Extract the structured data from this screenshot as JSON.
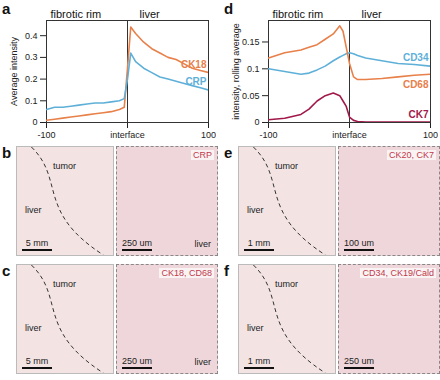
{
  "chart_data": [
    {
      "type": "line",
      "title": "a",
      "regions": [
        "fibrotic rim",
        "liver"
      ],
      "y_label": "Average intensity",
      "x": [
        -100,
        -90,
        -80,
        -70,
        -60,
        -50,
        -40,
        -30,
        -20,
        -10,
        -4,
        0,
        4,
        10,
        20,
        30,
        40,
        50,
        60,
        70,
        80,
        90,
        100
      ],
      "series": [
        {
          "name": "CK18",
          "color": "#e8804a",
          "values": [
            0.01,
            0.015,
            0.02,
            0.025,
            0.03,
            0.035,
            0.04,
            0.045,
            0.05,
            0.06,
            0.07,
            0.25,
            0.44,
            0.41,
            0.37,
            0.34,
            0.32,
            0.3,
            0.29,
            0.27,
            0.25,
            0.24,
            0.23
          ]
        },
        {
          "name": "CRP",
          "color": "#5fb0d8",
          "values": [
            0.06,
            0.07,
            0.07,
            0.075,
            0.08,
            0.085,
            0.09,
            0.09,
            0.095,
            0.1,
            0.11,
            0.2,
            0.32,
            0.28,
            0.25,
            0.23,
            0.21,
            0.2,
            0.19,
            0.18,
            0.17,
            0.16,
            0.15
          ]
        }
      ],
      "xlim": [
        -100,
        100
      ],
      "xticks": [
        -100,
        {
          "value": 0,
          "label": "interface"
        },
        100
      ],
      "ylim": [
        0,
        0.47
      ],
      "yticks": [
        0,
        0.1,
        0.2,
        0.3,
        0.4
      ]
    },
    {
      "type": "line",
      "title": "d",
      "regions": [
        "fibrotic rim",
        "liver"
      ],
      "y_label": "intensity, rolling average",
      "x": [
        -100,
        -80,
        -60,
        -50,
        -40,
        -30,
        -20,
        -12,
        -8,
        -4,
        0,
        5,
        10,
        20,
        40,
        60,
        80,
        100
      ],
      "series": [
        {
          "name": "CD34",
          "color": "#5fb0d8",
          "values": [
            0.1,
            0.095,
            0.09,
            0.092,
            0.098,
            0.105,
            0.115,
            0.122,
            0.125,
            0.128,
            0.13,
            0.128,
            0.125,
            0.12,
            0.115,
            0.11,
            0.108,
            0.105
          ]
        },
        {
          "name": "CD68",
          "color": "#e8804a",
          "values": [
            0.12,
            0.13,
            0.135,
            0.14,
            0.145,
            0.155,
            0.165,
            0.18,
            0.17,
            0.14,
            0.11,
            0.085,
            0.08,
            0.08,
            0.082,
            0.085,
            0.088,
            0.09
          ]
        },
        {
          "name": "CK7",
          "color": "#a0194a",
          "values": [
            0.005,
            0.008,
            0.015,
            0.025,
            0.04,
            0.05,
            0.055,
            0.05,
            0.04,
            0.03,
            0.01,
            0.004,
            0.002,
            0.001,
            0.001,
            0.001,
            0.001,
            0.001
          ]
        }
      ],
      "xlim": [
        -100,
        100
      ],
      "xticks": [
        -100,
        {
          "value": 0,
          "label": "interface"
        },
        100
      ],
      "ylim": [
        0,
        0.19
      ],
      "yticks": [
        0,
        0.05,
        0.1,
        0.15
      ]
    }
  ],
  "panels": [
    {
      "letter": "b",
      "overview": {
        "labels": [
          "tumor",
          "liver"
        ],
        "scale_bar": "5 mm"
      },
      "inset": {
        "stain": "CRP",
        "scale_bar": "250 um",
        "labels": [
          "liver"
        ]
      }
    },
    {
      "letter": "c",
      "overview": {
        "labels": [
          "tumor",
          "liver"
        ],
        "scale_bar": "5 mm"
      },
      "inset": {
        "stain": "CK18, CD68",
        "scale_bar": "250 um",
        "labels": [
          "liver"
        ]
      }
    },
    {
      "letter": "e",
      "overview": {
        "labels": [
          "tumor",
          "liver"
        ],
        "scale_bar": "1 mm"
      },
      "inset": {
        "stain": "CK20, CK7",
        "scale_bar": "100 um"
      }
    },
    {
      "letter": "f",
      "overview": {
        "labels": [
          "tumor",
          "liver"
        ],
        "scale_bar": "1 mm"
      },
      "inset": {
        "stain": "CD34, CK19/Cald",
        "scale_bar": "250 um"
      }
    }
  ]
}
